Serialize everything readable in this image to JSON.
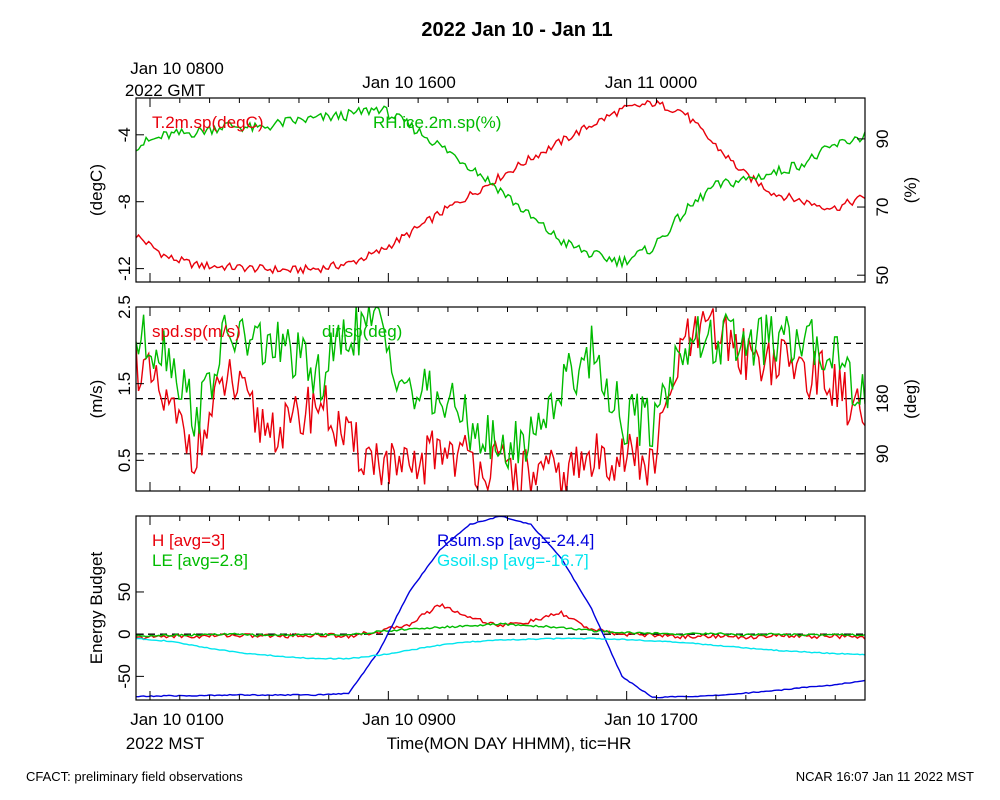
{
  "title": "2022 Jan 10 - Jan 11",
  "top_axis": {
    "labels": [
      "Jan 10 0800",
      "Jan 10 1600",
      "Jan 11 0000"
    ],
    "sublabel": "2022 GMT"
  },
  "bottom_axis": {
    "labels": [
      "Jan 10 0100",
      "Jan 10 0900",
      "Jan 10 1700"
    ],
    "sublabel": "2022 MST",
    "xlabel": "Time(MON DAY HHMM), tic=HR"
  },
  "footer": {
    "left": "CFACT: preliminary field observations",
    "right": "NCAR 16:07 Jan 11 2022 MST"
  },
  "colors": {
    "red": "#e8000b",
    "green": "#00bb00",
    "blue": "#0000dd",
    "cyan": "#00e5ee"
  },
  "chart_data": [
    {
      "type": "line",
      "ylabel": "(degC)",
      "y2label": "(%)",
      "x_hours_mst": [
        0,
        1,
        2,
        3,
        4,
        5,
        6,
        7,
        8,
        9,
        10,
        11,
        12,
        13,
        14,
        15,
        16,
        17,
        18,
        19,
        20,
        21,
        22,
        23,
        24
      ],
      "ylim": [
        -12.8,
        -1.8
      ],
      "yticks": [
        "-12",
        "-8",
        "-4"
      ],
      "yticks_values": [
        -12,
        -8,
        -4
      ],
      "y2lim": [
        48,
        102
      ],
      "y2ticks": [
        "50",
        "70",
        "90"
      ],
      "y2ticks_values": [
        50,
        70,
        90
      ],
      "series": [
        {
          "name": "T.2m.sp(degC)",
          "axis": "left",
          "color": "red",
          "values": [
            -10.0,
            -11.3,
            -11.8,
            -11.9,
            -12.0,
            -12.1,
            -12.0,
            -11.7,
            -11.0,
            -9.9,
            -8.7,
            -7.6,
            -6.5,
            -5.4,
            -4.4,
            -3.4,
            -2.5,
            -2.1,
            -2.6,
            -4.5,
            -6.3,
            -7.5,
            -8.0,
            -8.4,
            -7.7
          ]
        },
        {
          "name": "RH.ice.2m.sp(%)",
          "axis": "right",
          "color": "green",
          "values": [
            88,
            91,
            92,
            94,
            93,
            95,
            96,
            97,
            99,
            94,
            88,
            82,
            75,
            67,
            60,
            56,
            54,
            58,
            68,
            76,
            78,
            80,
            83,
            88,
            91
          ]
        }
      ]
    },
    {
      "type": "line",
      "ylabel": "(m/s)",
      "y2label": "(deg)",
      "x_hours_mst": [
        0,
        1,
        2,
        3,
        4,
        5,
        6,
        7,
        8,
        9,
        10,
        11,
        12,
        13,
        14,
        15,
        16,
        17,
        18,
        19,
        20,
        21,
        22,
        23,
        24
      ],
      "ylim": [
        0.1,
        2.5
      ],
      "yticks": [
        "0.5",
        "1.5",
        "2.5"
      ],
      "yticks_values": [
        0.5,
        1.5,
        2.5
      ],
      "y2_reference_lines_deg": [
        90,
        180,
        270
      ],
      "y2ticks": [
        "90",
        "180"
      ],
      "y2ticks_values": [
        90,
        180
      ],
      "series": [
        {
          "name": "spd.sp(m/s)",
          "axis": "left",
          "color": "red",
          "values": [
            1.8,
            1.2,
            0.6,
            1.6,
            1.0,
            0.9,
            1.3,
            0.7,
            0.5,
            0.3,
            0.7,
            0.5,
            0.4,
            0.3,
            0.3,
            0.5,
            0.6,
            0.4,
            2.0,
            2.2,
            1.9,
            1.8,
            1.7,
            1.5,
            1.0
          ]
        },
        {
          "name": "dir.sp(deg)",
          "axis": "right",
          "color": "green",
          "values": [
            275,
            265,
            150,
            285,
            270,
            260,
            210,
            290,
            300,
            190,
            180,
            140,
            90,
            120,
            200,
            260,
            150,
            140,
            270,
            275,
            270,
            275,
            268,
            262,
            180
          ]
        }
      ]
    },
    {
      "type": "line",
      "ylabel": "Energy Budget",
      "x_hours_mst": [
        0,
        1,
        2,
        3,
        4,
        5,
        6,
        7,
        8,
        9,
        10,
        11,
        12,
        13,
        14,
        15,
        16,
        17,
        18,
        19,
        20,
        21,
        22,
        23,
        24
      ],
      "ylim": [
        -78,
        140
      ],
      "yticks": [
        "-50",
        "0",
        "50"
      ],
      "yticks_values": [
        -50,
        0,
        50
      ],
      "reference_line": 0,
      "series": [
        {
          "name": "H [avg=3]",
          "color": "red",
          "values": [
            -5,
            -2,
            -3,
            -1,
            -2,
            -2,
            -1,
            -2,
            3,
            12,
            35,
            20,
            10,
            15,
            25,
            5,
            0,
            -1,
            -3,
            -2,
            -4,
            -1,
            -3,
            -2,
            -5
          ]
        },
        {
          "name": "LE [avg=2.8]",
          "color": "green",
          "values": [
            -2,
            -1,
            -1,
            0,
            -1,
            -1,
            0,
            -1,
            3,
            6,
            8,
            10,
            12,
            10,
            8,
            4,
            2,
            1,
            0,
            1,
            -1,
            0,
            -1,
            0,
            -1
          ]
        },
        {
          "name": "Rsum.sp [avg=-24.4]",
          "color": "blue",
          "values": [
            -74,
            -73,
            -73,
            -72,
            -72,
            -72,
            -72,
            -70,
            -20,
            50,
            100,
            130,
            140,
            130,
            90,
            30,
            -50,
            -75,
            -74,
            -73,
            -70,
            -67,
            -63,
            -60,
            -55
          ]
        },
        {
          "name": "Gsoil.sp [avg=-16.7]",
          "color": "cyan",
          "values": [
            -5,
            -8,
            -14,
            -20,
            -24,
            -27,
            -29,
            -29,
            -25,
            -19,
            -13,
            -9,
            -7,
            -6,
            -5,
            -5,
            -6,
            -8,
            -10,
            -13,
            -16,
            -19,
            -21,
            -23,
            -24
          ]
        }
      ]
    }
  ]
}
